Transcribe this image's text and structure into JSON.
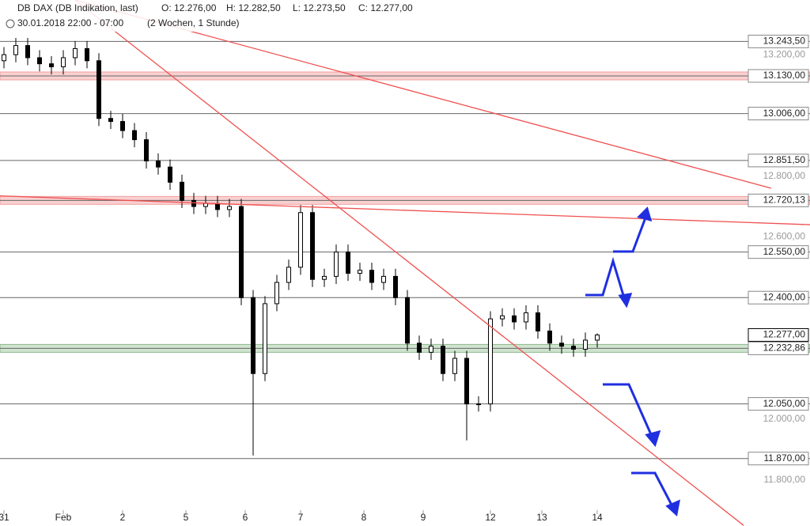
{
  "chart_data": {
    "type": "candlestick",
    "title": "DB DAX (DB Indikation, last)",
    "ohlc_summary": [
      "O: 12.276,00",
      "H: 12.282,50",
      "L: 12.273,50",
      "C: 12.277,00"
    ],
    "subtitle": "30.01.2018 22:00 - 07:00",
    "period": "(2 Wochen, 1 Stunde)",
    "xlim": [
      0,
      189
    ],
    "ylim": [
      11700,
      13380
    ],
    "xticks": [
      {
        "value": 1,
        "label": "31"
      },
      {
        "value": 16,
        "label": "Feb"
      },
      {
        "value": 31,
        "label": "2"
      },
      {
        "value": 47,
        "label": "5"
      },
      {
        "value": 62,
        "label": "6"
      },
      {
        "value": 76,
        "label": "7"
      },
      {
        "value": 92,
        "label": "8"
      },
      {
        "value": 107,
        "label": "9"
      },
      {
        "value": 124,
        "label": "12"
      },
      {
        "value": 137,
        "label": "13"
      },
      {
        "value": 151,
        "label": "14"
      }
    ],
    "yticks": [
      {
        "value": 13200,
        "label": "13.200,00"
      },
      {
        "value": 12800,
        "label": "12.800,00"
      },
      {
        "value": 12600,
        "label": "12.600,00"
      },
      {
        "value": 12000,
        "label": "12.000,00"
      },
      {
        "value": 11800,
        "label": "11.800,00"
      }
    ],
    "x": [
      1,
      4,
      7,
      10,
      13,
      16,
      19,
      22,
      25,
      28,
      31,
      34,
      37,
      40,
      43,
      46,
      49,
      52,
      55,
      58,
      61,
      64,
      67,
      70,
      73,
      76,
      79,
      82,
      85,
      88,
      91,
      94,
      97,
      100,
      103,
      106,
      109,
      112,
      115,
      118,
      121,
      124,
      127,
      130,
      133,
      136,
      139,
      142,
      145,
      148,
      151
    ],
    "open": [
      13180,
      13200,
      13230,
      13190,
      13170,
      13160,
      13190,
      13220,
      13180,
      12990,
      12980,
      12950,
      12920,
      12850,
      12830,
      12780,
      12720,
      12700,
      12710,
      12690,
      12700,
      12400,
      12150,
      12380,
      12450,
      12500,
      12680,
      12460,
      12470,
      12550,
      12480,
      12490,
      12450,
      12470,
      12400,
      12250,
      12220,
      12240,
      12150,
      12200,
      12050,
      12050,
      12330,
      12340,
      12320,
      12350,
      12290,
      12250,
      12240,
      12230,
      12260
    ],
    "high": [
      13225,
      13255,
      13255,
      13215,
      13195,
      13215,
      13245,
      13245,
      13205,
      13015,
      13005,
      12975,
      12945,
      12875,
      12855,
      12805,
      12745,
      12735,
      12735,
      12725,
      12725,
      12425,
      12405,
      12475,
      12525,
      12705,
      12705,
      12495,
      12575,
      12575,
      12515,
      12515,
      12495,
      12495,
      12425,
      12275,
      12265,
      12265,
      12225,
      12225,
      12075,
      12355,
      12365,
      12365,
      12375,
      12375,
      12315,
      12275,
      12265,
      12285,
      12282
    ],
    "low": [
      13155,
      13175,
      13165,
      13145,
      13135,
      13135,
      13165,
      13155,
      12965,
      12955,
      12925,
      12895,
      12825,
      12805,
      12755,
      12695,
      12675,
      12675,
      12665,
      12665,
      12375,
      11880,
      12125,
      12355,
      12425,
      12475,
      12435,
      12435,
      12445,
      12455,
      12455,
      12425,
      12425,
      12375,
      12225,
      12195,
      12195,
      12125,
      12125,
      11930,
      12025,
      12025,
      12305,
      12295,
      12295,
      12265,
      12225,
      12215,
      12205,
      12205,
      12235
    ],
    "close": [
      13200,
      13230,
      13190,
      13170,
      13160,
      13190,
      13220,
      13180,
      12990,
      12980,
      12950,
      12920,
      12850,
      12830,
      12780,
      12720,
      12700,
      12710,
      12690,
      12700,
      12400,
      12150,
      12380,
      12450,
      12500,
      12680,
      12460,
      12470,
      12550,
      12480,
      12490,
      12450,
      12470,
      12400,
      12250,
      12220,
      12240,
      12150,
      12200,
      12050,
      12050,
      12330,
      12340,
      12320,
      12350,
      12290,
      12250,
      12240,
      12230,
      12260,
      12277
    ],
    "levels": [
      {
        "value": 13243.5,
        "label": "13.243,50",
        "style": "line"
      },
      {
        "value": 13130,
        "label": "13.130,00",
        "style": "band"
      },
      {
        "value": 13006,
        "label": "13.006,00",
        "style": "line"
      },
      {
        "value": 12851.5,
        "label": "12.851,50",
        "style": "line"
      },
      {
        "value": 12720.13,
        "label": "12.720,13",
        "style": "band"
      },
      {
        "value": 12550,
        "label": "12.550,00",
        "style": "line"
      },
      {
        "value": 12400,
        "label": "12.400,00",
        "style": "line"
      },
      {
        "value": 12277,
        "label": "12.277,00",
        "style": "current"
      },
      {
        "value": 12232.86,
        "label": "12.232,86",
        "style": "support"
      },
      {
        "value": 12050,
        "label": "12.050,00",
        "style": "line"
      },
      {
        "value": 11870,
        "label": "11.870,00",
        "style": "line"
      }
    ],
    "trend_lines": [
      {
        "x": [
          19,
          195
        ],
        "y": [
          13380,
          12760
        ],
        "color": "#f05050"
      },
      {
        "x": [
          19,
          188
        ],
        "y": [
          13380,
          11650
        ],
        "color": "#f05050"
      },
      {
        "x": [
          0,
          205
        ],
        "y": [
          12735,
          12640
        ],
        "color": "#f05050"
      }
    ]
  }
}
